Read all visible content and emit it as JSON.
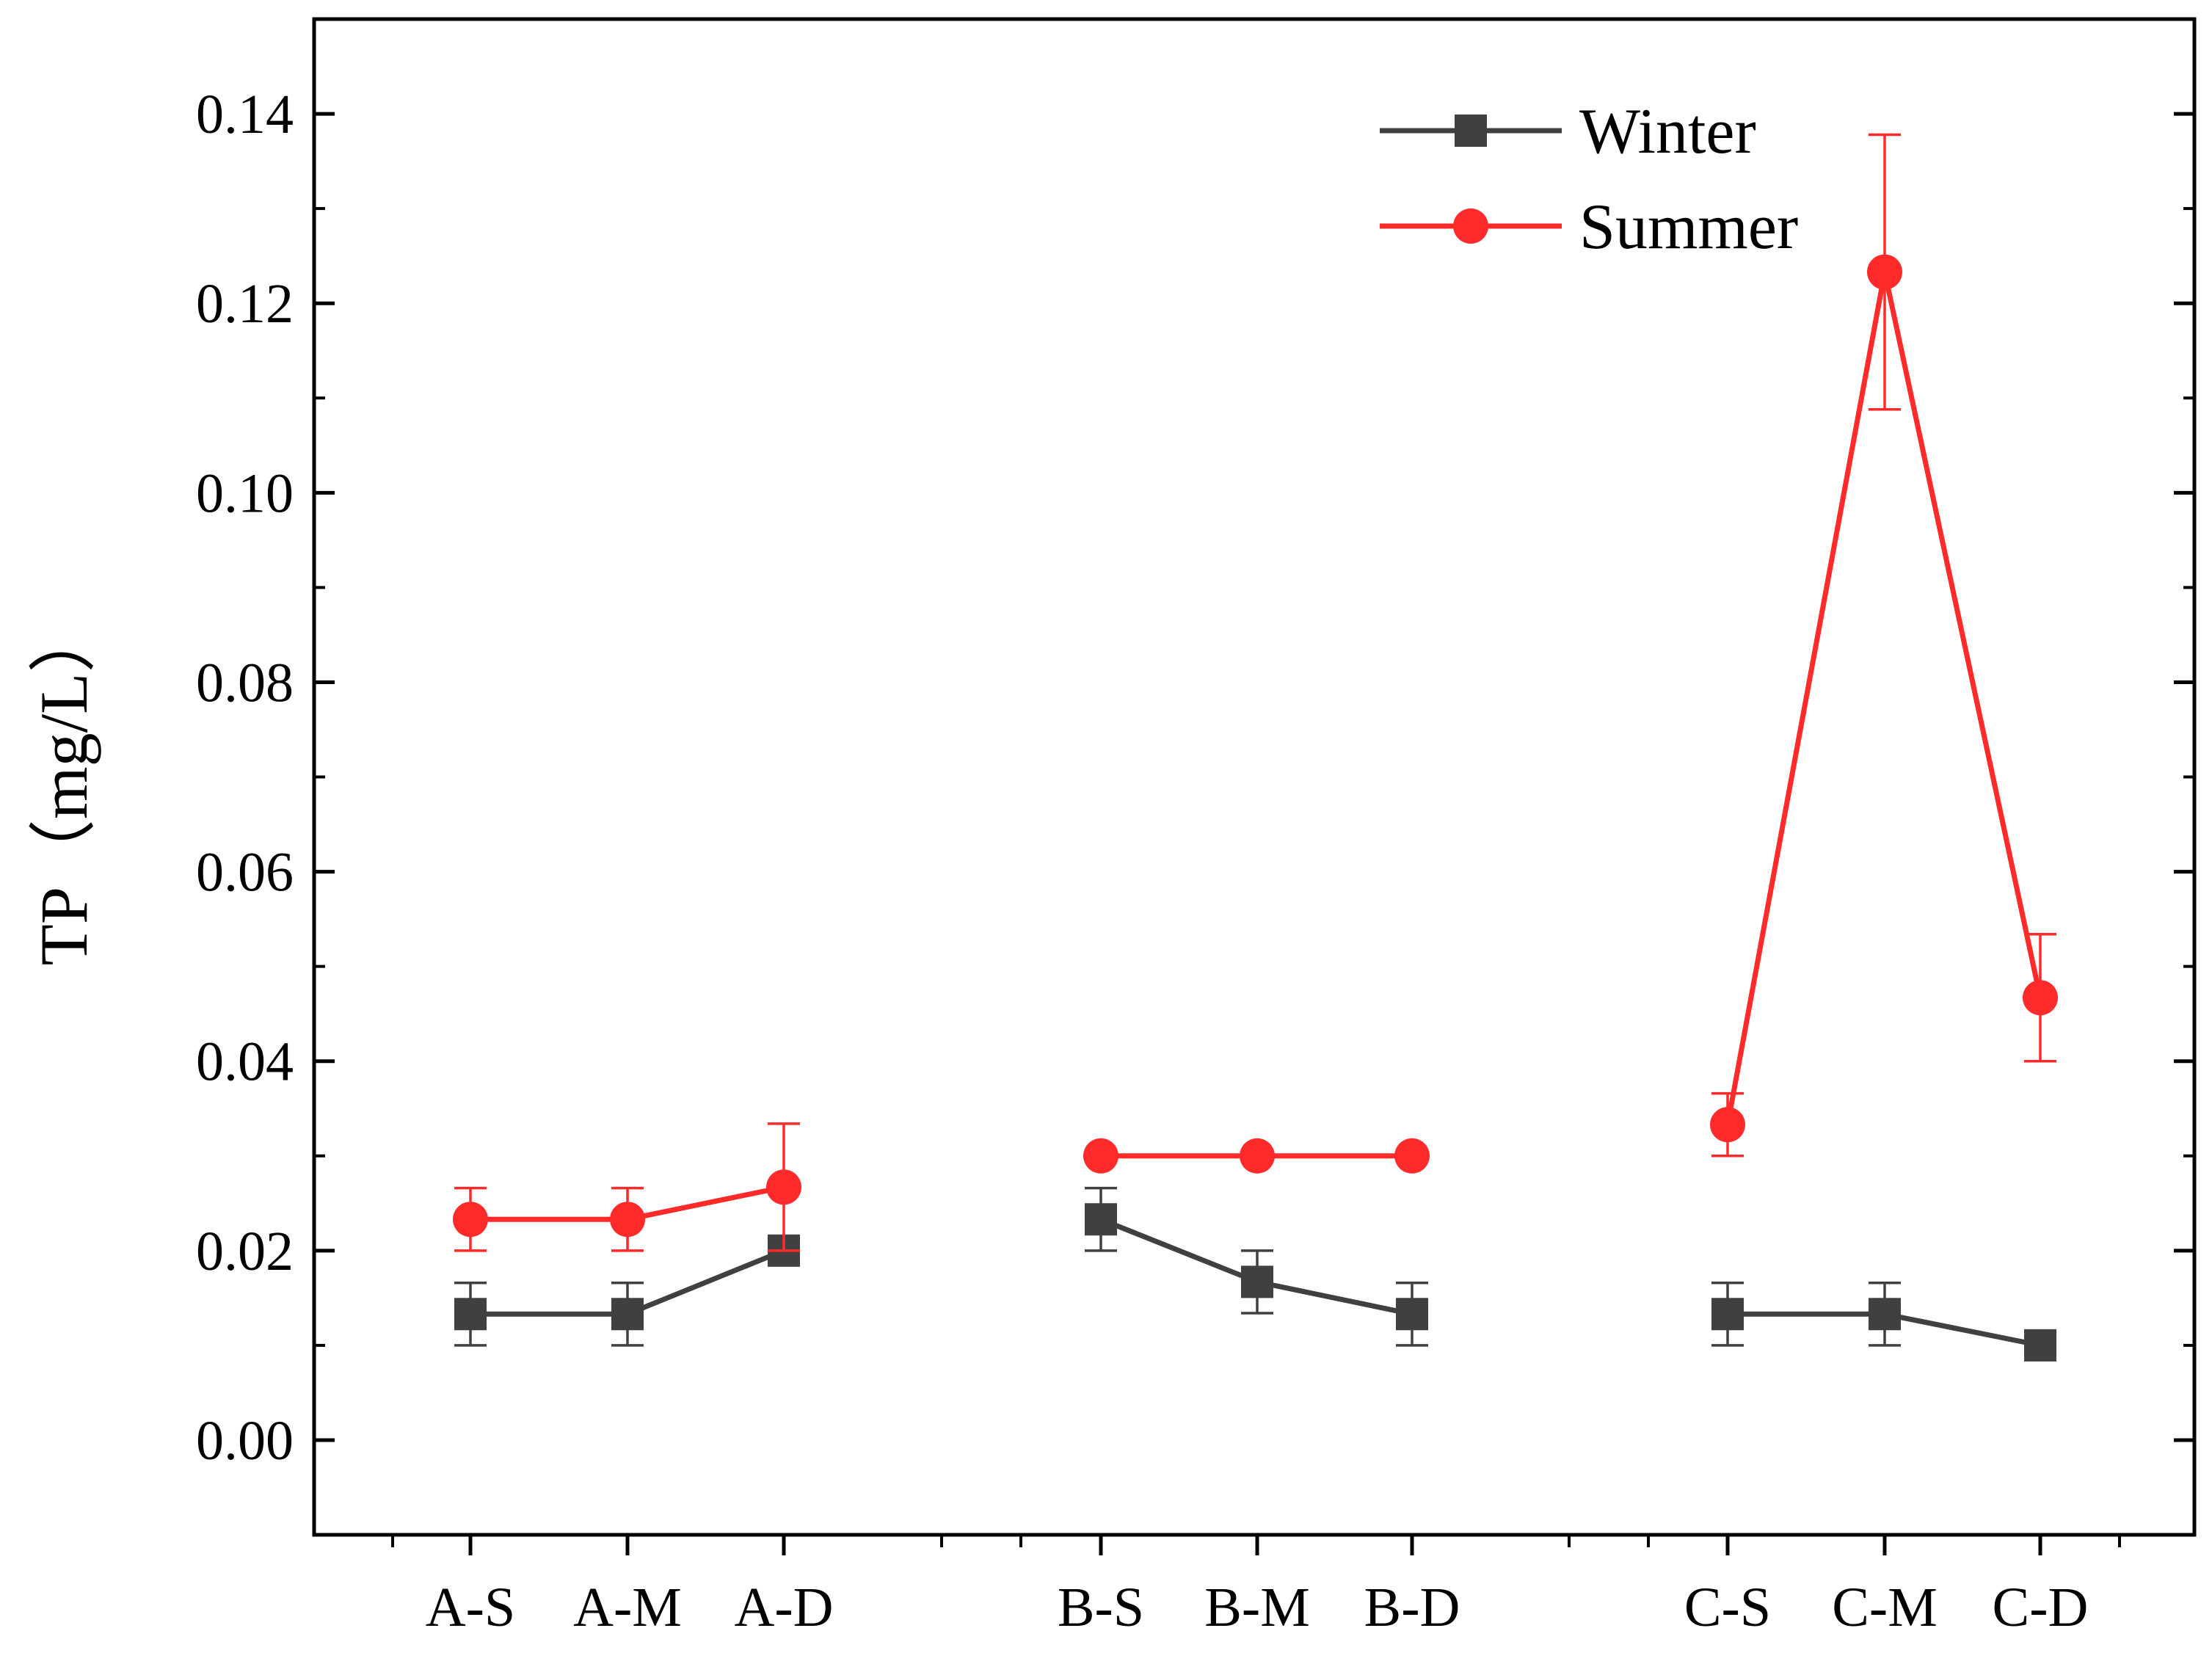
{
  "chart_data": {
    "type": "line",
    "title": "",
    "xlabel": "",
    "ylabel": "TP（mg/L）",
    "ylim": [
      -0.01,
      0.15
    ],
    "yticks": [
      0.0,
      0.02,
      0.04,
      0.06,
      0.08,
      0.1,
      0.12,
      0.14
    ],
    "ytick_labels": [
      "0.00",
      "0.02",
      "0.04",
      "0.06",
      "0.08",
      "0.10",
      "0.12",
      "0.14"
    ],
    "categories": [
      "A-S",
      "A-M",
      "A-D",
      "B-S",
      "B-M",
      "B-D",
      "C-S",
      "C-M",
      "C-D"
    ],
    "category_groups": [
      [
        "A-S",
        "A-M",
        "A-D"
      ],
      [
        "B-S",
        "B-M",
        "B-D"
      ],
      [
        "C-S",
        "C-M",
        "C-D"
      ]
    ],
    "legend_position": "top-right",
    "grid": false,
    "series": [
      {
        "name": "Winter",
        "color": "#404040",
        "marker": "square",
        "values": [
          0.0133,
          0.0133,
          0.02,
          0.0233,
          0.0167,
          0.0133,
          0.0133,
          0.0133,
          0.01
        ],
        "errors": [
          0.0033,
          0.0033,
          0.0,
          0.0033,
          0.0033,
          0.0033,
          0.0033,
          0.0033,
          0.0
        ]
      },
      {
        "name": "Summer",
        "color": "#ff2a2a",
        "marker": "circle",
        "values": [
          0.0233,
          0.0233,
          0.0267,
          0.03,
          0.03,
          0.03,
          0.0333,
          0.1233,
          0.0467
        ],
        "errors": [
          0.0033,
          0.0033,
          0.0067,
          0.0,
          0.0,
          0.0,
          0.0033,
          0.0145,
          0.0067
        ]
      }
    ]
  }
}
